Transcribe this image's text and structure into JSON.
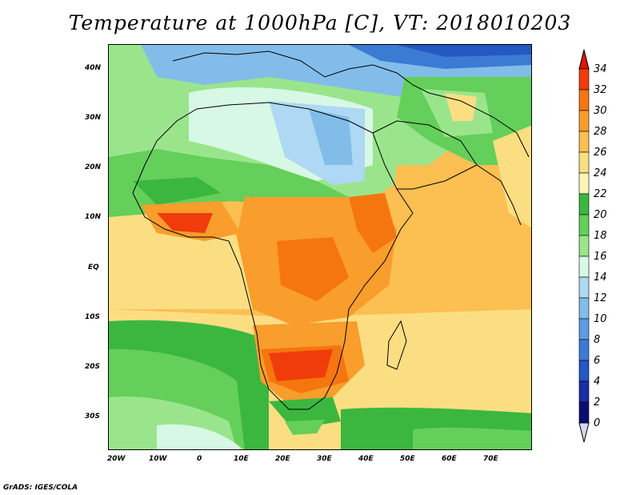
{
  "title": "Temperature at 1000hPa [C], VT: 2018010203",
  "credit": "GrADS: IGES/COLA",
  "map": {
    "lat_ticks": [
      "40N",
      "30N",
      "20N",
      "10N",
      "EQ",
      "10S",
      "20S",
      "30S"
    ],
    "lon_ticks": [
      "20W",
      "10W",
      "0",
      "10E",
      "20E",
      "30E",
      "40E",
      "50E",
      "60E",
      "70E"
    ],
    "lon_range": [
      -22,
      80
    ],
    "lat_range": [
      -37,
      45
    ]
  },
  "colorbar": {
    "labels": [
      "34",
      "32",
      "30",
      "28",
      "26",
      "24",
      "22",
      "20",
      "18",
      "16",
      "14",
      "12",
      "10",
      "8",
      "6",
      "4",
      "2",
      "0"
    ],
    "colors": {
      "over": "#d91a00",
      "c32": "#f03c0a",
      "c30": "#f5760f",
      "c28": "#f99d2c",
      "c26": "#fbbf52",
      "c24": "#fcde82",
      "c22": "#fcf3b6",
      "c20": "#3bb740",
      "c18": "#64cf5a",
      "c16": "#9ae58c",
      "c14": "#d7f8e4",
      "c12": "#aed8f3",
      "c10": "#82bde9",
      "c8": "#5d9cdf",
      "c6": "#3b7bd3",
      "c4": "#2658c2",
      "c2": "#1a2fa4",
      "c0": "#0b0e6e",
      "under": "#d8d8f5"
    }
  }
}
